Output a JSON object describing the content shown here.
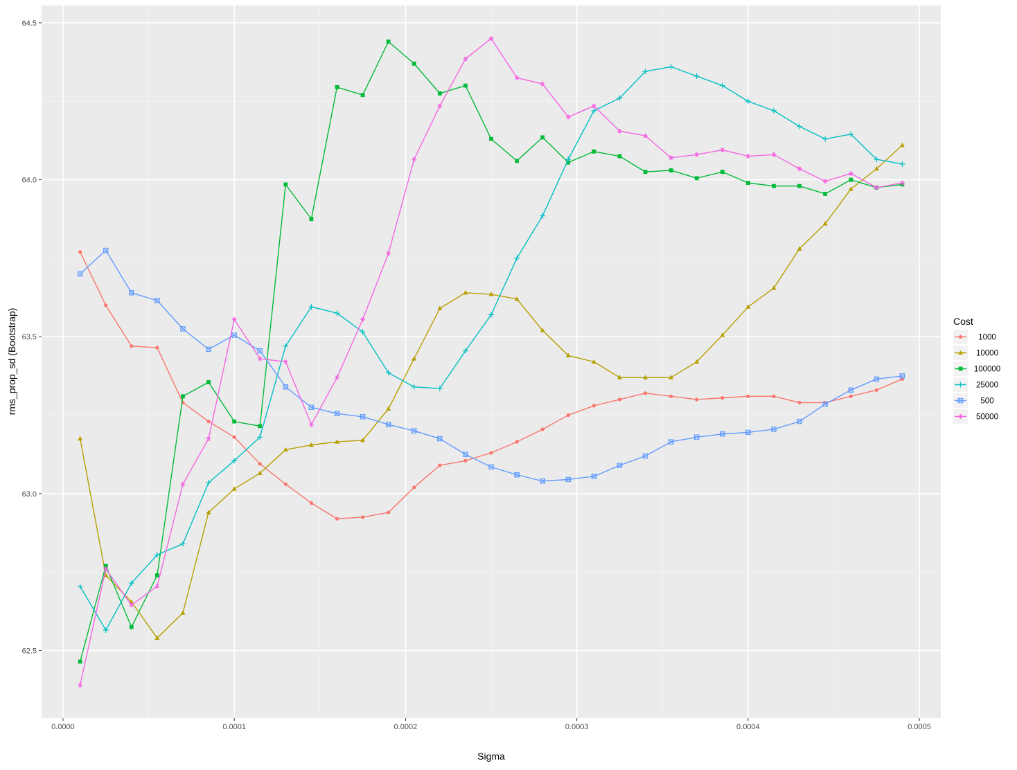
{
  "chart_data": {
    "type": "line",
    "xlabel": "Sigma",
    "ylabel": "rms_prop_sd (Bootstrap)",
    "xlim": [
      -1.25e-05,
      0.0005125
    ],
    "ylim": [
      62.285,
      64.555
    ],
    "x_ticks": [
      0.0,
      0.0001,
      0.0002,
      0.0003,
      0.0004,
      0.0005
    ],
    "x_tick_labels": [
      "0.0000",
      "0.0001",
      "0.0002",
      "0.0003",
      "0.0004",
      "0.0005"
    ],
    "y_ticks": [
      62.5,
      63.0,
      63.5,
      64.0,
      64.5
    ],
    "y_tick_labels": [
      "62.5",
      "63.0",
      "63.5",
      "64.0",
      "64.5"
    ],
    "grid": true,
    "legend": {
      "title": "Cost",
      "position": "right"
    },
    "x": [
      1e-05,
      2.5e-05,
      4e-05,
      5.5e-05,
      7e-05,
      8.5e-05,
      0.0001,
      0.000115,
      0.00013,
      0.000145,
      0.00016,
      0.000175,
      0.00019,
      0.000205,
      0.00022,
      0.000235,
      0.00025,
      0.000265,
      0.00028,
      0.000295,
      0.00031,
      0.000325,
      0.00034,
      0.000355,
      0.00037,
      0.000385,
      0.0004,
      0.000415,
      0.00043,
      0.000445,
      0.00046,
      0.000475,
      0.00049
    ],
    "series": [
      {
        "name": "1000",
        "color": "#F8766D",
        "marker": "circle",
        "values": [
          63.77,
          63.6,
          63.47,
          63.465,
          63.29,
          63.23,
          63.18,
          63.095,
          63.03,
          62.97,
          62.92,
          62.925,
          62.94,
          63.02,
          63.09,
          63.105,
          63.13,
          63.165,
          63.205,
          63.25,
          63.28,
          63.3,
          63.32,
          63.31,
          63.3,
          63.305,
          63.31,
          63.31,
          63.29,
          63.29,
          63.31,
          63.33,
          63.365
        ]
      },
      {
        "name": "10000",
        "color": "#B79F00",
        "marker": "triangle",
        "values": [
          63.175,
          62.74,
          62.655,
          62.54,
          62.62,
          62.94,
          63.015,
          63.065,
          63.14,
          63.155,
          63.165,
          63.17,
          63.27,
          63.43,
          63.59,
          63.64,
          63.635,
          63.62,
          63.52,
          63.44,
          63.42,
          63.37,
          63.37,
          63.37,
          63.42,
          63.505,
          63.595,
          63.655,
          63.78,
          63.86,
          63.97,
          64.035,
          64.11
        ]
      },
      {
        "name": "100000",
        "color": "#00BA38",
        "marker": "square",
        "values": [
          62.465,
          62.77,
          62.575,
          62.74,
          63.31,
          63.355,
          63.23,
          63.215,
          63.985,
          63.875,
          64.295,
          64.27,
          64.44,
          64.37,
          64.275,
          64.3,
          64.13,
          64.06,
          64.135,
          64.055,
          64.09,
          64.075,
          64.025,
          64.03,
          64.005,
          64.025,
          63.99,
          63.98,
          63.98,
          63.955,
          64.0,
          63.975,
          63.985
        ]
      },
      {
        "name": "25000",
        "color": "#00BFC4",
        "marker": "plus",
        "values": [
          62.705,
          62.565,
          62.715,
          62.805,
          62.84,
          63.035,
          63.105,
          63.18,
          63.47,
          63.595,
          63.575,
          63.515,
          63.385,
          63.34,
          63.335,
          63.455,
          63.57,
          63.75,
          63.885,
          64.065,
          64.22,
          64.26,
          64.345,
          64.36,
          64.33,
          64.3,
          64.25,
          64.22,
          64.17,
          64.13,
          64.145,
          64.065,
          64.05
        ]
      },
      {
        "name": "500",
        "color": "#619CFF",
        "marker": "boxed-cross",
        "values": [
          63.7,
          63.775,
          63.64,
          63.615,
          63.525,
          63.46,
          63.505,
          63.455,
          63.34,
          63.275,
          63.255,
          63.245,
          63.22,
          63.2,
          63.175,
          63.125,
          63.085,
          63.06,
          63.04,
          63.045,
          63.055,
          63.09,
          63.12,
          63.165,
          63.18,
          63.19,
          63.195,
          63.205,
          63.23,
          63.285,
          63.33,
          63.365,
          63.375
        ]
      },
      {
        "name": "50000",
        "color": "#F564E3",
        "marker": "asterisk",
        "values": [
          62.39,
          62.76,
          62.645,
          62.705,
          63.03,
          63.175,
          63.555,
          63.43,
          63.42,
          63.22,
          63.37,
          63.555,
          63.765,
          64.065,
          64.235,
          64.385,
          64.45,
          64.325,
          64.305,
          64.2,
          64.235,
          64.155,
          64.14,
          64.07,
          64.08,
          64.095,
          64.075,
          64.08,
          64.035,
          63.995,
          64.02,
          63.975,
          63.99
        ]
      }
    ]
  }
}
